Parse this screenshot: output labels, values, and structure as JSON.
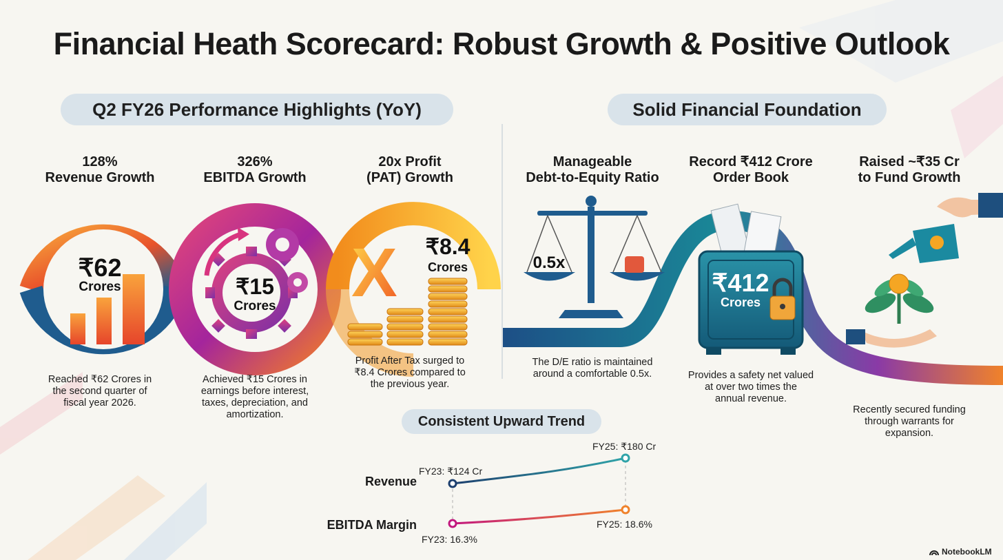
{
  "title": "Financial Heath Scorecard: Robust Growth & Positive Outlook",
  "left_section": {
    "heading": "Q2 FY26 Performance Highlights (YoY)",
    "cards": [
      {
        "metric_line1": "128%",
        "metric_line2": "Revenue Growth",
        "value": "₹62",
        "unit": "Crores",
        "description_lines": [
          "Reached ₹62 Crores in",
          "the second quarter of",
          "fiscal year 2026."
        ]
      },
      {
        "metric_line1": "326%",
        "metric_line2": "EBITDA Growth",
        "value": "₹15",
        "unit": "Crores",
        "description_lines": [
          "Achieved ₹15 Crores in",
          "earnings before interest,",
          "taxes, depreciation, and",
          "amortization."
        ]
      },
      {
        "metric_line1": "20x Profit",
        "metric_line2": "(PAT) Growth",
        "value": "₹8.4",
        "unit": "Crores",
        "description_lines": [
          "Profit After Tax surged to",
          "₹8.4 Crores compared to",
          "the previous year."
        ]
      }
    ]
  },
  "right_section": {
    "heading": "Solid Financial Foundation",
    "cards": [
      {
        "metric_line1": "Manageable",
        "metric_line2": "Debt-to-Equity Ratio",
        "value": "0.5x",
        "description_lines": [
          "The D/E ratio is maintained",
          "around a comfortable 0.5x."
        ]
      },
      {
        "metric_line1": "Record ₹412 Crore",
        "metric_line2": "Order Book",
        "value": "₹412",
        "unit": "Crores",
        "description_lines": [
          "Provides a safety net valued",
          "at over two times the",
          "annual revenue."
        ]
      },
      {
        "metric_line1": "Raised ~₹35 Cr",
        "metric_line2": "to Fund Growth",
        "description_lines": [
          "Recently secured funding",
          "through warrants for",
          "expansion."
        ]
      }
    ]
  },
  "trend": {
    "heading": "Consistent Upward Trend",
    "rows": [
      {
        "label": "Revenue",
        "start_label": "FY23: ₹124 Cr",
        "end_label": "FY25: ₹180 Cr"
      },
      {
        "label": "EBITDA Margin",
        "start_label": "FY23: 16.3%",
        "end_label": "FY25: 18.6%"
      }
    ]
  },
  "branding": {
    "name": "NotebookLM",
    "icon": "notebooklm-logo-icon"
  },
  "colors": {
    "orange": "#f26a21",
    "magenta": "#c2187e",
    "purple": "#7a2fa6",
    "teal": "#1a7f93",
    "navy": "#1d4f86",
    "gold": "#f5a623",
    "pill_bg": "#d9e3ea"
  }
}
